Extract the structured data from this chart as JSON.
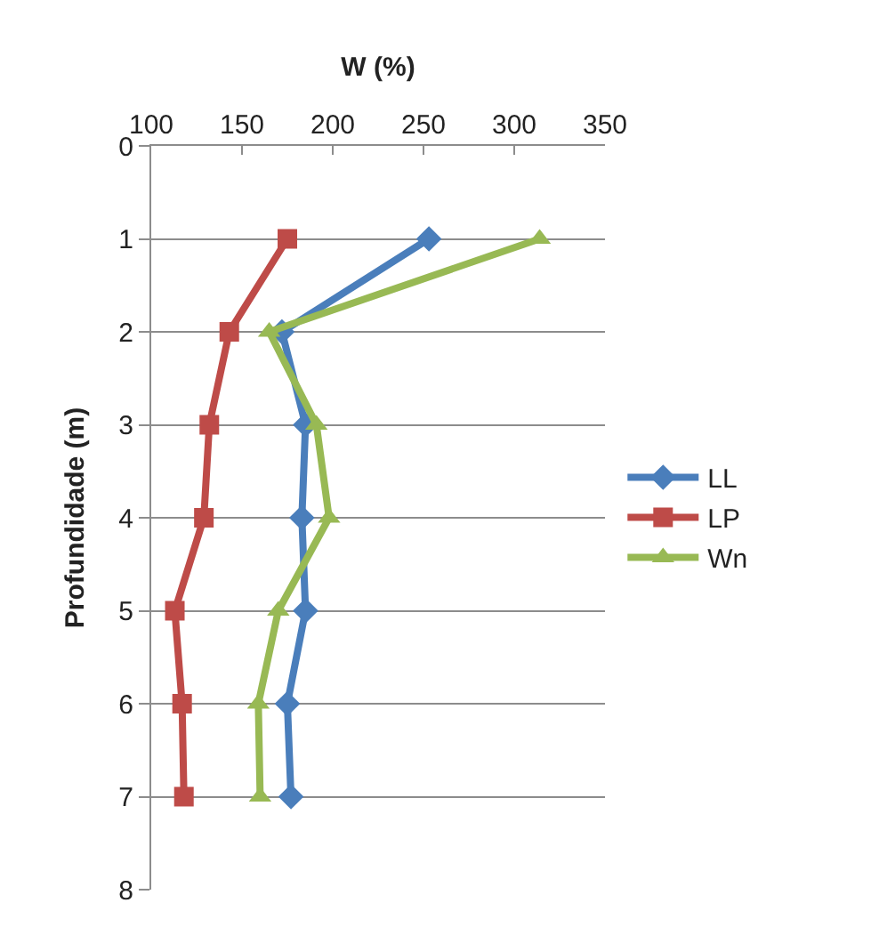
{
  "chart_data": {
    "type": "line",
    "orientation": "horizontal",
    "xlabel": "W (%)",
    "ylabel": "Profundidade (m)",
    "x": [
      1,
      2,
      3,
      4,
      5,
      6,
      7
    ],
    "series": [
      {
        "name": "LL",
        "color": "#4a7ebb",
        "marker": "diamond",
        "values": [
          253,
          172,
          185,
          183,
          185,
          175,
          177
        ]
      },
      {
        "name": "LP",
        "color": "#be4b48",
        "marker": "square",
        "values": [
          175,
          143,
          132,
          129,
          113,
          117,
          118
        ]
      },
      {
        "name": "Wn",
        "color": "#98b954",
        "marker": "triangle",
        "values": [
          314,
          165,
          191,
          198,
          170,
          159,
          160
        ]
      }
    ],
    "xlim": [
      100,
      350
    ],
    "xticks": [
      100,
      150,
      200,
      250,
      300,
      350
    ],
    "ylim": [
      8,
      0
    ],
    "yticks": [
      0,
      1,
      2,
      3,
      4,
      5,
      6,
      7,
      8
    ],
    "grid": "y",
    "legend": "right",
    "line_style": "solid"
  }
}
